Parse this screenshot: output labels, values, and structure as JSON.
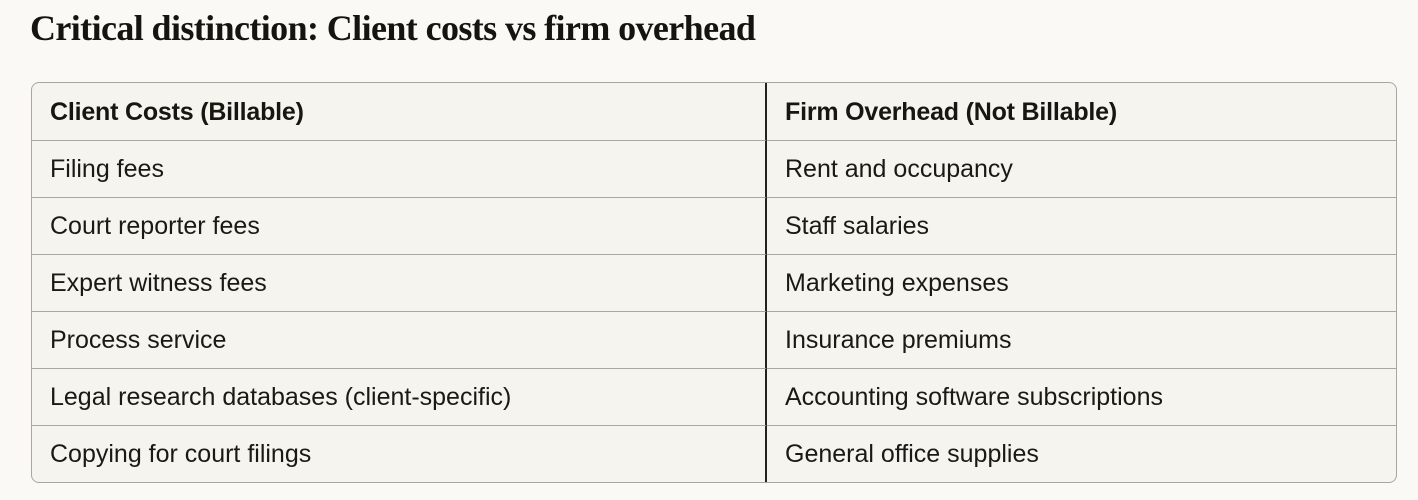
{
  "page": {
    "title": "Critical distinction: Client costs vs firm overhead"
  },
  "table": {
    "headers": [
      "Client Costs (Billable)",
      "Firm Overhead (Not Billable)"
    ],
    "rows": [
      [
        "Filing fees",
        "Rent and occupancy"
      ],
      [
        "Court reporter fees",
        "Staff salaries"
      ],
      [
        "Expert witness fees",
        "Marketing expenses"
      ],
      [
        "Process service",
        "Insurance premiums"
      ],
      [
        "Legal research databases (client-specific)",
        "Accounting software subscriptions"
      ],
      [
        "Copying for court filings",
        "General office supplies"
      ]
    ]
  },
  "colors": {
    "page_background": "#FAF9F5",
    "table_background": "#F5F4EE",
    "border_light": "#A9A69E",
    "border_dark": "#23221E",
    "text": "#1A1915"
  }
}
